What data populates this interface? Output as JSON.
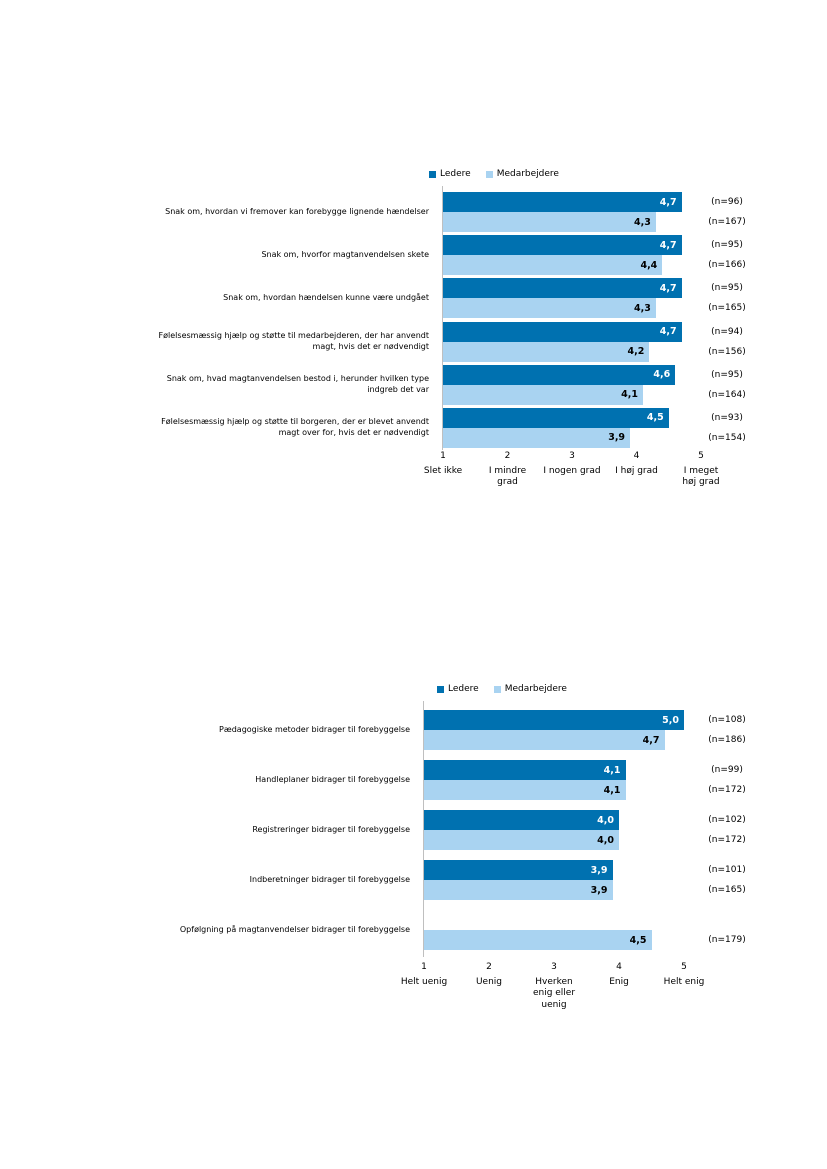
{
  "page": {
    "background": "#ffffff"
  },
  "colors": {
    "ledere": "#0071b0",
    "medarbejdere": "#a9d3f1",
    "axis_line": "#bfbfbf",
    "text": "#000000"
  },
  "chart_data": [
    {
      "type": "bar",
      "orientation": "horizontal",
      "title": "",
      "legend_position": "top",
      "grid": false,
      "x_axis": {
        "min": 1,
        "max": 5,
        "tick_values": [
          1,
          2,
          3,
          4,
          5
        ],
        "tick_labels": [
          [
            "Slet ikke"
          ],
          [
            "I mindre",
            "grad"
          ],
          [
            "I nogen grad"
          ],
          [
            "I høj grad"
          ],
          [
            "I meget",
            "høj grad"
          ]
        ]
      },
      "categories": [
        "Snak om, hvordan vi fremover kan forebygge lignende hændelser",
        "Snak om, hvorfor magtanvendelsen skete",
        "Snak om, hvordan hændelsen kunne være undgået",
        "Følelsesmæssig hjælp og støtte til medarbejderen, der har anvendt magt, hvis det er nødvendigt",
        "Snak om, hvad magtanvendelsen bestod i, herunder hvilken type indgreb det var",
        "Følelsesmæssig hjælp og støtte til borgeren, der er blevet anvendt magt over for, hvis det er nødvendigt"
      ],
      "series": [
        {
          "name": "Ledere",
          "color": "#0071b0",
          "value_label_color": "#ffffff",
          "values": [
            4.7,
            4.7,
            4.7,
            4.7,
            4.6,
            4.5
          ],
          "n_labels": [
            "(n=96)",
            "(n=95)",
            "(n=95)",
            "(n=94)",
            "(n=95)",
            "(n=93)"
          ]
        },
        {
          "name": "Medarbejdere",
          "color": "#a9d3f1",
          "value_label_color": "#000000",
          "values": [
            4.3,
            4.4,
            4.3,
            4.2,
            4.1,
            3.9
          ],
          "n_labels": [
            "(n=167)",
            "(n=166)",
            "(n=165)",
            "(n=156)",
            "(n=164)",
            "(n=154)"
          ]
        }
      ]
    },
    {
      "type": "bar",
      "orientation": "horizontal",
      "title": "",
      "legend_position": "top",
      "grid": false,
      "x_axis": {
        "min": 1,
        "max": 5,
        "tick_values": [
          1,
          2,
          3,
          4,
          5
        ],
        "tick_labels": [
          [
            "Helt uenig"
          ],
          [
            "Uenig"
          ],
          [
            "Hverken",
            "enig eller",
            "uenig"
          ],
          [
            "Enig"
          ],
          [
            "Helt enig"
          ]
        ]
      },
      "categories": [
        "Pædagogiske metoder bidrager til forebyggelse",
        "Handleplaner bidrager til forebyggelse",
        "Registreringer bidrager til forebyggelse",
        "Indberetninger bidrager til forebyggelse",
        "Opfølgning på magtanvendelser bidrager til forebyggelse"
      ],
      "series": [
        {
          "name": "Ledere",
          "color": "#0071b0",
          "value_label_color": "#ffffff",
          "values": [
            5.0,
            4.1,
            4.0,
            3.9,
            null
          ],
          "n_labels": [
            "(n=108)",
            "(n=99)",
            "(n=102)",
            "(n=101)",
            null
          ]
        },
        {
          "name": "Medarbejdere",
          "color": "#a9d3f1",
          "value_label_color": "#000000",
          "values": [
            4.7,
            4.1,
            4.0,
            3.9,
            4.5
          ],
          "n_labels": [
            "(n=186)",
            "(n=172)",
            "(n=172)",
            "(n=165)",
            "(n=179)"
          ]
        }
      ]
    }
  ]
}
